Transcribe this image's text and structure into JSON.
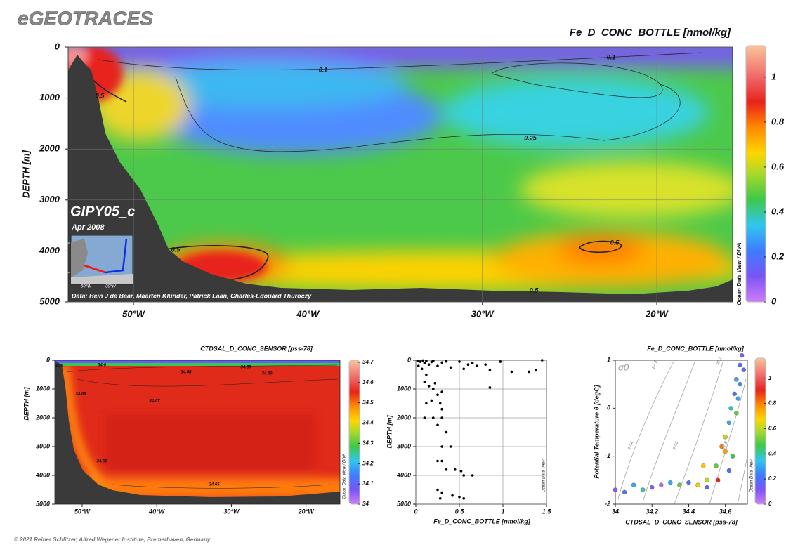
{
  "header": {
    "title": "eGEOTRACES"
  },
  "footer": {
    "credit": "© 2021 Reiner Schlitzer, Alfred Wegener Institute, Bremerhaven, Germany"
  },
  "chart_data": [
    {
      "type": "section",
      "title": "Fe_D_CONC_BOTTLE [nmol/kg]",
      "ylabel": "DEPTH [m]",
      "xlim": [
        -53.75,
        -15.65
      ],
      "xticks": [
        {
          "value": -50,
          "label": "50°W"
        },
        {
          "value": -40,
          "label": "40°W"
        },
        {
          "value": -30,
          "label": "30°W"
        },
        {
          "value": -20,
          "label": "20°W"
        }
      ],
      "ylim": [
        0,
        5000
      ],
      "yticks": [
        0,
        1000,
        2000,
        3000,
        4000,
        5000
      ],
      "yreverse": true,
      "grid": true,
      "colorbar": {
        "ylim": [
          0,
          1.14
        ],
        "yticks": [
          0,
          0.2,
          0.4,
          0.6,
          0.8,
          1
        ]
      },
      "contour_labels": [
        "0.1",
        "0.1",
        "0.5",
        "0.25",
        "0.5",
        "0.5",
        "0.5"
      ],
      "cruise": "GIPY05_c",
      "date": "Apr 2008",
      "source": "Data: Hein J de Baar, Maarten Klunder, Patrick Laan, Charles-Edouard Thuroczy",
      "watermark": "Ocean Data View / DIVA",
      "inset_labels": [
        "40°",
        "70°",
        "60°W",
        "30°W"
      ]
    },
    {
      "type": "section",
      "title": "CTDSAL_D_CONC_SENSOR [pss-78]",
      "ylabel": "DEPTH [m]",
      "xlim": [
        -53.67,
        -15.45
      ],
      "xticks": [
        {
          "value": -50,
          "label": "50°W"
        },
        {
          "value": -40,
          "label": "40°W"
        },
        {
          "value": -30,
          "label": "30°W"
        },
        {
          "value": -20,
          "label": "20°W"
        }
      ],
      "ylim": [
        0,
        5000
      ],
      "yticks": [
        0,
        1000,
        2000,
        3000,
        4000,
        5000
      ],
      "yreverse": true,
      "grid": false,
      "colorbar": {
        "ylim": [
          34,
          34.71
        ],
        "yticks": [
          34,
          34.1,
          34.2,
          34.3,
          34.4,
          34.5,
          34.6,
          34.7
        ]
      },
      "contour_labels": [
        "34.5",
        "34.6",
        "34.68",
        "34.65",
        "34.69",
        "34.68",
        "34.67",
        "34.66",
        "34.65"
      ],
      "watermark": "Ocean Data View / DIVA"
    },
    {
      "type": "scatter",
      "xlabel": "Fe_D_CONC_BOTTLE [nmol/kg]",
      "ylabel": "DEPTH [m]",
      "color": "#000000",
      "xlim": [
        0,
        1.5
      ],
      "xticks": [
        0,
        0.5,
        1,
        1.5
      ],
      "ylim": [
        0,
        5000
      ],
      "yticks": [
        0,
        1000,
        2000,
        3000,
        4000,
        5000
      ],
      "yreverse": true,
      "grid": true,
      "x": [
        0.02,
        0.05,
        0.08,
        0.1,
        0.12,
        0.15,
        0.18,
        0.2,
        0.25,
        0.3,
        0.35,
        0.4,
        0.5,
        0.55,
        0.6,
        0.65,
        0.7,
        0.8,
        0.85,
        0.97,
        1.1,
        1.3,
        1.38,
        1.45,
        0.03,
        0.07,
        0.12,
        0.1,
        0.15,
        0.2,
        0.22,
        0.25,
        0.3,
        0.85,
        0.12,
        0.18,
        0.28,
        0.3,
        0.1,
        0.2,
        0.3,
        0.25,
        0.35,
        0.3,
        0.4,
        0.25,
        0.3,
        0.35,
        0.45,
        0.52,
        0.65,
        0.25,
        0.3,
        0.42,
        0.5,
        0.55,
        0.28,
        0.55
      ],
      "values": [
        20,
        50,
        10,
        100,
        30,
        150,
        60,
        20,
        200,
        80,
        40,
        250,
        50,
        300,
        150,
        100,
        200,
        150,
        350,
        50,
        400,
        400,
        350,
        0,
        200,
        300,
        500,
        750,
        900,
        1000,
        800,
        1200,
        1100,
        950,
        1500,
        1400,
        1500,
        1700,
        2000,
        2000,
        2000,
        2250,
        2500,
        3000,
        3000,
        3500,
        3500,
        3800,
        3800,
        3850,
        4000,
        4500,
        4600,
        4700,
        4750,
        4800,
        4800,
        4000
      ],
      "watermark": "Ocean Data View"
    },
    {
      "type": "scatter",
      "title": "Fe_D_CONC_BOTTLE [nmol/kg]",
      "xlabel": "CTDSAL_D_CONC_SENSOR [pss-78]",
      "ylabel": "Potential Temperature θ [degC]",
      "xlim": [
        34,
        34.72
      ],
      "xticks": [
        34,
        34.2,
        34.4,
        34.6
      ],
      "ylim": [
        -2,
        1
      ],
      "yticks": [
        -2,
        -1,
        0,
        1
      ],
      "grid": false,
      "x": [
        34.0,
        34.05,
        34.1,
        34.15,
        34.2,
        34.3,
        34.35,
        34.4,
        34.45,
        34.5,
        34.55,
        34.58,
        34.6,
        34.62,
        34.63,
        34.65,
        34.66,
        34.68,
        34.69,
        34.66,
        34.64,
        34.62,
        34.5,
        34.25,
        34.48,
        34.56,
        34.68,
        34.67,
        34.7,
        34.6
      ],
      "values": [
        -1.7,
        -1.75,
        -1.6,
        -1.7,
        -1.65,
        -1.55,
        -1.6,
        -1.55,
        -1.6,
        -1.5,
        -1.2,
        -0.8,
        -0.6,
        -0.3,
        0,
        0.3,
        0.6,
        0.9,
        1.1,
        -0.1,
        -1.0,
        -1.3,
        -1.65,
        -1.6,
        -1.2,
        -1.5,
        0.5,
        0.2,
        0.8,
        -0.9
      ],
      "c": [
        0.1,
        0.2,
        0.3,
        0.4,
        0.1,
        0.3,
        0.5,
        0.2,
        0.7,
        0.6,
        0.5,
        0.8,
        0.6,
        0.3,
        0.4,
        0.2,
        0.3,
        0.2,
        0.1,
        0.5,
        0.45,
        0.2,
        0.15,
        0.05,
        0.7,
        0.9,
        0.25,
        0.3,
        0.15,
        0.75
      ],
      "colorbar": {
        "ylim": [
          0,
          1.16
        ],
        "yticks": [
          0,
          0.2,
          0.4,
          0.6,
          0.8,
          1
        ]
      },
      "density_label": "σ0",
      "isopycnal_labels": [
        "27.4",
        "27.5",
        "27.6",
        "27.7",
        "27.8"
      ],
      "watermark": "Ocean Data View"
    }
  ]
}
